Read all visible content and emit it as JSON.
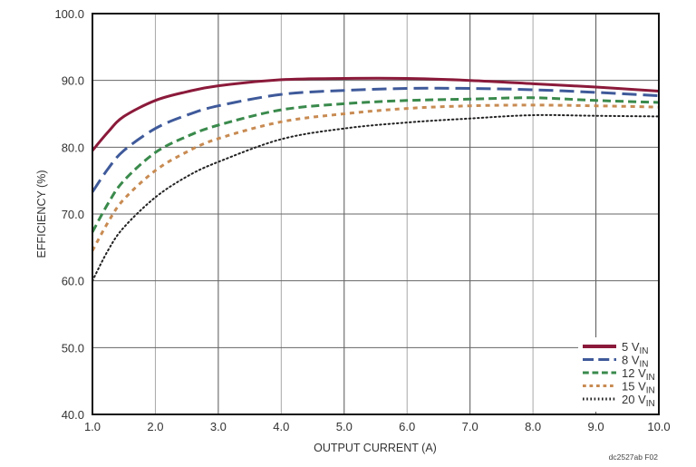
{
  "chart_data": {
    "type": "line",
    "title": "",
    "xlabel": "OUTPUT CURRENT (A)",
    "ylabel": "EFFICIENCY (%)",
    "xlim": [
      1.0,
      10.0
    ],
    "ylim": [
      40.0,
      100.0
    ],
    "x_ticks": [
      "1.0",
      "2.0",
      "3.0",
      "4.0",
      "5.0",
      "6.0",
      "7.0",
      "8.0",
      "9.0",
      "10.0"
    ],
    "y_ticks": [
      "40.0",
      "50.0",
      "60.0",
      "70.0",
      "80.0",
      "90.0",
      "100.0"
    ],
    "grid": true,
    "legend_position": "lower right, inside plot",
    "figure_code": "dc2527ab F02",
    "x": [
      1.0,
      1.25,
      1.5,
      2.0,
      2.5,
      3.0,
      4.0,
      5.0,
      6.0,
      7.0,
      8.0,
      9.0,
      10.0
    ],
    "series": [
      {
        "name": "5 VIN",
        "label_main": "5 V",
        "label_sub": "IN",
        "color": "#8b1a3a",
        "dash": "solid",
        "width": 3,
        "values": [
          79.5,
          82.3,
          84.6,
          87.0,
          88.3,
          89.2,
          90.1,
          90.3,
          90.3,
          90.0,
          89.5,
          89.0,
          88.4
        ]
      },
      {
        "name": "8 VIN",
        "label_main": "8 V",
        "label_sub": "IN",
        "color": "#3f5a9a",
        "dash": "long-dash",
        "width": 3,
        "values": [
          73.3,
          76.8,
          79.5,
          82.8,
          84.8,
          86.2,
          87.9,
          88.5,
          88.8,
          88.8,
          88.6,
          88.2,
          87.7
        ]
      },
      {
        "name": "12 VIN",
        "label_main": "12 V",
        "label_sub": "IN",
        "color": "#3a8a4c",
        "dash": "dash",
        "width": 3,
        "values": [
          67.3,
          71.6,
          75.0,
          79.2,
          81.6,
          83.3,
          85.6,
          86.5,
          87.0,
          87.2,
          87.4,
          87.0,
          86.7
        ]
      },
      {
        "name": "15 VIN",
        "label_main": "15 V",
        "label_sub": "IN",
        "color": "#c88b52",
        "dash": "short-dash",
        "width": 3,
        "values": [
          64.5,
          68.8,
          72.2,
          76.5,
          79.3,
          81.3,
          83.8,
          85.0,
          85.8,
          86.2,
          86.3,
          86.2,
          86.0
        ]
      },
      {
        "name": "20 VIN",
        "label_main": "20 V",
        "label_sub": "IN",
        "color": "#222222",
        "dash": "dot",
        "width": 2,
        "values": [
          60.0,
          64.6,
          68.0,
          72.5,
          75.6,
          77.8,
          81.2,
          82.8,
          83.7,
          84.3,
          84.8,
          84.7,
          84.6
        ]
      }
    ]
  }
}
